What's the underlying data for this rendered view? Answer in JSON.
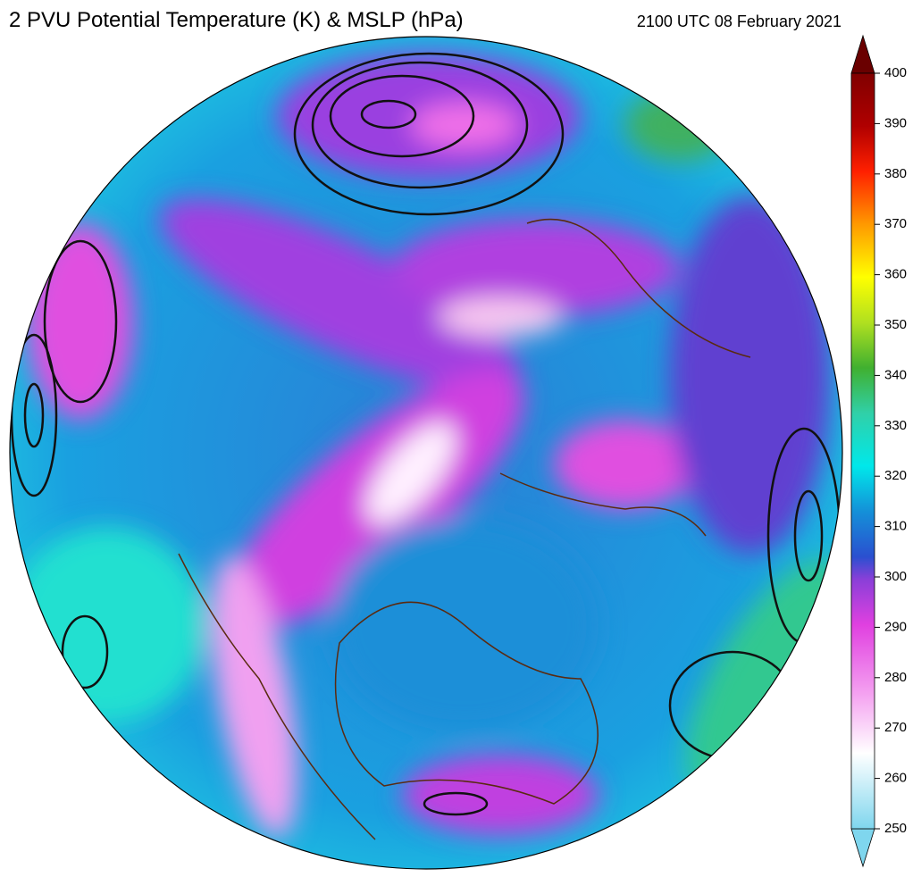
{
  "header": {
    "title": "2 PVU Potential Temperature (K) & MSLP (hPa)",
    "time": "2100 UTC 08 February 2021"
  },
  "colorbar": {
    "range": [
      250,
      400
    ],
    "ticks": [
      250,
      260,
      270,
      280,
      290,
      300,
      310,
      320,
      330,
      340,
      350,
      360,
      370,
      380,
      390,
      400
    ]
  }
}
